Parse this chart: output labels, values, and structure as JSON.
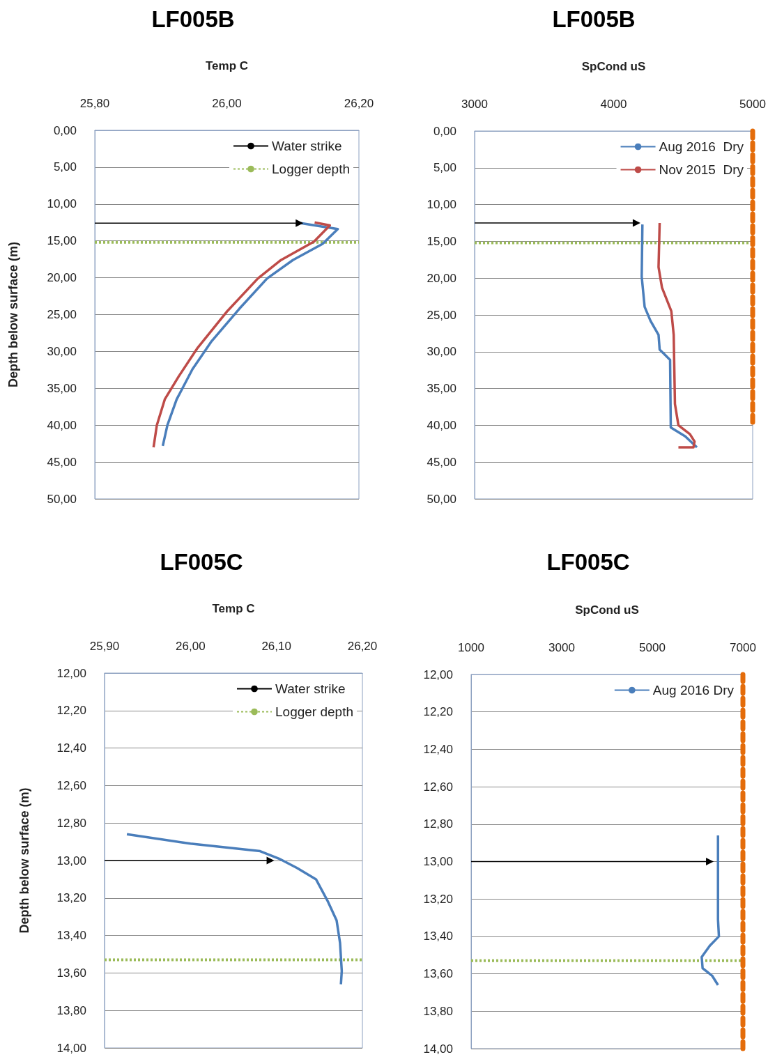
{
  "chart_data": [
    {
      "type": "line",
      "title": "LF005B",
      "xlabel": "Temp C",
      "ylabel": "Depth below surface (m)",
      "legend": "top right",
      "grid": "y",
      "xlim": [
        25.8,
        26.2
      ],
      "xticks": [
        {
          "value": 25.8,
          "label": "25,80"
        },
        {
          "value": 26.0,
          "label": "26,00"
        },
        {
          "value": 26.2,
          "label": "26,20"
        }
      ],
      "ylim": [
        50,
        0
      ],
      "yticks": [
        {
          "value": 0,
          "label": "0,00"
        },
        {
          "value": 5,
          "label": "5,00"
        },
        {
          "value": 10,
          "label": "10,00"
        },
        {
          "value": 15,
          "label": "15,00"
        },
        {
          "value": 20,
          "label": "20,00"
        },
        {
          "value": 25,
          "label": "25,00"
        },
        {
          "value": 30,
          "label": "30,00"
        },
        {
          "value": 35,
          "label": "35,00"
        },
        {
          "value": 40,
          "label": "40,00"
        },
        {
          "value": 45,
          "label": "45,00"
        },
        {
          "value": 50,
          "label": "50,00"
        }
      ],
      "series": [
        {
          "color": "#4a7ebb",
          "x": [
            26.112,
            26.168,
            26.145,
            26.1,
            26.061,
            26.019,
            25.977,
            25.948,
            25.924,
            25.91,
            25.903
          ],
          "values": [
            12.6,
            13.4,
            15.4,
            17.6,
            20.1,
            24.2,
            28.6,
            32.4,
            36.5,
            40.0,
            42.8
          ]
        },
        {
          "color": "#be4b48",
          "x": [
            26.133,
            26.156,
            26.132,
            26.082,
            26.047,
            26.001,
            25.955,
            25.927,
            25.906,
            25.894,
            25.889
          ],
          "values": [
            12.5,
            12.9,
            15.1,
            17.6,
            20.1,
            24.5,
            29.6,
            33.4,
            36.5,
            40.0,
            43.0
          ]
        },
        {
          "name": "Water strike",
          "color": "#000000",
          "marker": "triangle",
          "x": [
            25.8,
            26.11
          ],
          "values": [
            12.6,
            12.6
          ]
        },
        {
          "name": "Logger depth",
          "color": "#9bbb59",
          "line_style": "dotted",
          "x": [
            25.8,
            26.2
          ],
          "values": [
            15.2,
            15.2
          ]
        }
      ]
    },
    {
      "type": "line",
      "title": "LF005B",
      "xlabel": "SpCond uS",
      "legend": "top right",
      "grid": "y",
      "xlim": [
        3000,
        5000
      ],
      "xticks": [
        3000,
        4000,
        5000
      ],
      "ylim": [
        50,
        0
      ],
      "yticks": [
        {
          "value": 0,
          "label": "0,00"
        },
        {
          "value": 5,
          "label": "5,00"
        },
        {
          "value": 10,
          "label": "10,00"
        },
        {
          "value": 15,
          "label": "15,00"
        },
        {
          "value": 20,
          "label": "20,00"
        },
        {
          "value": 25,
          "label": "25,00"
        },
        {
          "value": 30,
          "label": "30,00"
        },
        {
          "value": 35,
          "label": "35,00"
        },
        {
          "value": 40,
          "label": "40,00"
        },
        {
          "value": 45,
          "label": "45,00"
        },
        {
          "value": 50,
          "label": "50,00"
        }
      ],
      "series": [
        {
          "name": "Aug 2016  Dry",
          "color": "#4a7ebb",
          "x": [
            4207,
            4202,
            4223,
            4265,
            4323,
            4331,
            4406,
            4411,
            4515,
            4599
          ],
          "values": [
            12.7,
            19.8,
            23.9,
            25.8,
            27.7,
            29.7,
            31.1,
            40.3,
            41.5,
            43.0
          ]
        },
        {
          "name": "Nov 2015  Dry",
          "color": "#be4b48",
          "x": [
            4331,
            4323,
            4348,
            4415,
            4432,
            4441,
            4466,
            4549,
            4582,
            4574,
            4466
          ],
          "values": [
            12.5,
            18.5,
            21.3,
            24.5,
            27.7,
            37.1,
            40.0,
            41.2,
            42.2,
            43.0,
            43.0
          ]
        },
        {
          "color": "#000000",
          "marker": "triangle",
          "x": [
            3000,
            4165
          ],
          "values": [
            12.5,
            12.5
          ]
        },
        {
          "color": "#9bbb59",
          "line_style": "dotted",
          "x": [
            3000,
            5000
          ],
          "values": [
            15.2,
            15.2
          ]
        },
        {
          "color": "#e46c0a",
          "line_style": "dashed",
          "x": [
            5000,
            5000
          ],
          "values": [
            0,
            40
          ]
        }
      ]
    },
    {
      "type": "line",
      "title": "LF005C",
      "xlabel": "Temp C",
      "ylabel": "Depth below surface (m)",
      "legend": "top right",
      "grid": "y",
      "xlim": [
        25.9,
        26.2
      ],
      "xticks": [
        {
          "value": 25.9,
          "label": "25,90"
        },
        {
          "value": 26.0,
          "label": "26,00"
        },
        {
          "value": 26.1,
          "label": "26,10"
        },
        {
          "value": 26.2,
          "label": "26,20"
        }
      ],
      "ylim": [
        14,
        12
      ],
      "yticks": [
        {
          "value": 12,
          "label": "12,00"
        },
        {
          "value": 12.2,
          "label": "12,20"
        },
        {
          "value": 12.4,
          "label": "12,40"
        },
        {
          "value": 12.6,
          "label": "12,60"
        },
        {
          "value": 12.8,
          "label": "12,80"
        },
        {
          "value": 13,
          "label": "13,00"
        },
        {
          "value": 13.2,
          "label": "13,20"
        },
        {
          "value": 13.4,
          "label": "13,40"
        },
        {
          "value": 13.6,
          "label": "13,60"
        },
        {
          "value": 13.8,
          "label": "13,80"
        },
        {
          "value": 14,
          "label": "14,00"
        }
      ],
      "series": [
        {
          "color": "#4a7ebb",
          "x": [
            25.926,
            26.0,
            26.081,
            26.103,
            26.124,
            26.146,
            26.16,
            26.17,
            26.174,
            26.176,
            26.175
          ],
          "values": [
            12.86,
            12.91,
            12.95,
            12.99,
            13.04,
            13.1,
            13.22,
            13.32,
            13.44,
            13.59,
            13.66
          ]
        },
        {
          "name": "Water strike",
          "color": "#000000",
          "marker": "triangle",
          "x": [
            25.9,
            26.093
          ],
          "values": [
            13.0,
            13.0
          ]
        },
        {
          "name": "Logger depth",
          "color": "#9bbb59",
          "line_style": "dotted",
          "x": [
            25.9,
            26.2
          ],
          "values": [
            13.53,
            13.53
          ]
        }
      ]
    },
    {
      "type": "line",
      "title": "LF005C",
      "xlabel": "SpCond uS",
      "legend": "top right",
      "grid": "y",
      "xlim": [
        1000,
        7000
      ],
      "xticks": [
        1000,
        3000,
        5000,
        7000
      ],
      "ylim": [
        14,
        12
      ],
      "yticks": [
        {
          "value": 12,
          "label": "12,00"
        },
        {
          "value": 12.2,
          "label": "12,20"
        },
        {
          "value": 12.4,
          "label": "12,40"
        },
        {
          "value": 12.6,
          "label": "12,60"
        },
        {
          "value": 12.8,
          "label": "12,80"
        },
        {
          "value": 13,
          "label": "13,00"
        },
        {
          "value": 13.2,
          "label": "13,20"
        },
        {
          "value": 13.4,
          "label": "13,40"
        },
        {
          "value": 13.6,
          "label": "13,60"
        },
        {
          "value": 13.8,
          "label": "13,80"
        },
        {
          "value": 14,
          "label": "14,00"
        }
      ],
      "series": [
        {
          "name": "Aug 2016 Dry",
          "color": "#4a7ebb",
          "x": [
            6450,
            6450,
            6470,
            6270,
            6090,
            6110,
            6320,
            6450
          ],
          "values": [
            12.86,
            13.31,
            13.4,
            13.45,
            13.51,
            13.57,
            13.61,
            13.66
          ]
        },
        {
          "color": "#000000",
          "marker": "triangle",
          "x": [
            1000,
            6270
          ],
          "values": [
            13.0,
            13.0
          ]
        },
        {
          "color": "#9bbb59",
          "line_style": "dotted",
          "x": [
            1000,
            7000
          ],
          "values": [
            13.53,
            13.53
          ]
        },
        {
          "color": "#e46c0a",
          "line_style": "dashed",
          "x": [
            7000,
            7000
          ],
          "values": [
            12,
            14
          ]
        }
      ]
    }
  ]
}
